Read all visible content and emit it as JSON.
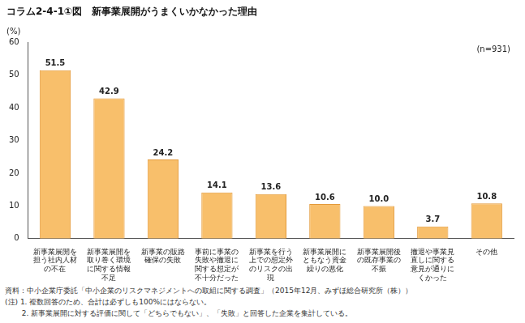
{
  "chart_data": {
    "type": "bar",
    "title": "コラム2-4-1①図　新事業展開がうまくいかなかった理由",
    "y_label": "(%)",
    "annotations": [
      "(n=931)"
    ],
    "notes": [
      "資料：中小企業庁委託「中小企業のリスクマネジメントへの取組に関する調査」（2015年12月、みずほ総合研究所（株））",
      "(注) 1. 複数回答のため、合計は必ずしも100%にはならない。",
      "　　 2. 新事業展開に対する評価に関して「どちらでもない」、「失敗」と回答した企業を集計している。"
    ],
    "categories": [
      "新事業展開を担う社内人材の不在",
      "新事業展開を取り巻く環境に関する情報不足",
      "新事業の販路確保の失敗",
      "事前に事業の失敗や撤退に関する想定が不十分だった",
      "新事業を行う上での想定外のリスクの出現",
      "新事業展開にともなう資金繰りの悪化",
      "新事業展開後の既存事業の不振",
      "撤退や事業見直しに関する意見が通りにくかった",
      "その他"
    ],
    "values": [
      51.5,
      42.9,
      24.2,
      14.1,
      13.6,
      10.6,
      10.0,
      3.7,
      10.8
    ],
    "value_labels": [
      "51.5",
      "42.9",
      "24.2",
      "14.1",
      "13.6",
      "10.6",
      "10.0",
      "3.7",
      "10.8"
    ],
    "color": "#f8bf6b",
    "ylim": [
      0,
      60
    ],
    "yticks": [
      0,
      10,
      20,
      30,
      40,
      50,
      60
    ],
    "grid": false,
    "data_labels": true
  }
}
